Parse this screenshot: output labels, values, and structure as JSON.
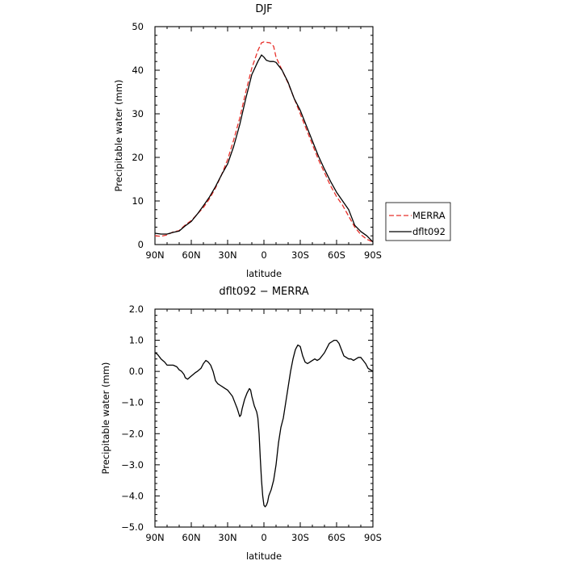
{
  "colors": {
    "merra": "#e8302a",
    "model": "#000000",
    "axis": "#000000"
  },
  "chart_data": [
    {
      "type": "line",
      "title": "DJF",
      "xlabel": "latitude",
      "ylabel": "Precipitable water  (mm)",
      "xlim": [
        90,
        -90
      ],
      "ylim": [
        0,
        50
      ],
      "xticks": [
        90,
        60,
        30,
        0,
        -30,
        -60,
        -90
      ],
      "xtick_labels": [
        "90N",
        "60N",
        "30N",
        "0",
        "30S",
        "60S",
        "90S"
      ],
      "yticks": [
        0,
        10,
        20,
        30,
        40,
        50
      ],
      "ytick_labels": [
        "0",
        "10",
        "20",
        "30",
        "40",
        "50"
      ],
      "legend": {
        "placement": "outside-right",
        "entries": [
          "MERRA",
          "dflt092"
        ]
      },
      "series": [
        {
          "name": "MERRA",
          "style": "dashed",
          "x": [
            90,
            85,
            80,
            75,
            70,
            65,
            60,
            55,
            50,
            45,
            40,
            35,
            30,
            25,
            20,
            15,
            10,
            5,
            2,
            0,
            -2,
            -5,
            -8,
            -10,
            -15,
            -20,
            -25,
            -30,
            -35,
            -40,
            -45,
            -50,
            -55,
            -60,
            -65,
            -70,
            -75,
            -80,
            -85,
            -90
          ],
          "y": [
            2.0,
            1.9,
            2.2,
            2.9,
            3.2,
            4.5,
            5.5,
            7.0,
            8.5,
            10.5,
            13.0,
            16.0,
            19.5,
            24.0,
            29.0,
            35.0,
            40.5,
            44.5,
            46.3,
            46.5,
            46.4,
            46.3,
            45.5,
            43.0,
            40.0,
            37.0,
            33.5,
            30.0,
            26.5,
            23.0,
            19.5,
            16.5,
            13.5,
            11.0,
            9.0,
            6.5,
            4.0,
            2.3,
            1.2,
            0.6
          ]
        },
        {
          "name": "dflt092",
          "style": "solid",
          "x": [
            90,
            85,
            80,
            75,
            70,
            65,
            60,
            55,
            50,
            45,
            40,
            35,
            30,
            25,
            20,
            15,
            10,
            5,
            2,
            0,
            -2,
            -5,
            -8,
            -10,
            -15,
            -20,
            -25,
            -30,
            -35,
            -40,
            -45,
            -50,
            -55,
            -60,
            -65,
            -70,
            -75,
            -80,
            -85,
            -90
          ],
          "y": [
            2.6,
            2.4,
            2.4,
            2.8,
            3.1,
            4.3,
            5.3,
            7.0,
            8.9,
            10.9,
            13.3,
            16.0,
            18.5,
            22.5,
            27.5,
            33.5,
            39.0,
            42.0,
            43.5,
            43.0,
            42.3,
            42.0,
            42.0,
            41.8,
            40.0,
            37.2,
            33.5,
            30.8,
            27.3,
            23.8,
            20.3,
            17.3,
            14.5,
            12.0,
            10.0,
            8.0,
            4.4,
            3.0,
            2.0,
            0.6
          ]
        }
      ]
    },
    {
      "type": "line",
      "title": "dflt092 − MERRA",
      "xlabel": "latitude",
      "ylabel": "Precipitable water  (mm)",
      "xlim": [
        90,
        -90
      ],
      "ylim": [
        -5,
        2
      ],
      "xticks": [
        90,
        60,
        30,
        0,
        -30,
        -60,
        -90
      ],
      "xtick_labels": [
        "90N",
        "60N",
        "30N",
        "0",
        "30S",
        "60S",
        "90S"
      ],
      "yticks": [
        2,
        1,
        0,
        -1,
        -2,
        -3,
        -4,
        -5
      ],
      "ytick_labels": [
        "2.0",
        "1.0",
        "0.0",
        "−1.0",
        "−2.0",
        "−3.0",
        "−4.0",
        "−5.0"
      ],
      "series": [
        {
          "style": "solid",
          "x": [
            90,
            88,
            85,
            82,
            80,
            77,
            75,
            72,
            70,
            68,
            66,
            65,
            63,
            60,
            57,
            55,
            52,
            50,
            48,
            46,
            44,
            42,
            40,
            38,
            36,
            34,
            32,
            30,
            28,
            26,
            24,
            22,
            20,
            19,
            18,
            16,
            14,
            12,
            11,
            10,
            8,
            6,
            5,
            4,
            3,
            2,
            1,
            0,
            -1,
            -2,
            -3,
            -4,
            -6,
            -8,
            -10,
            -12,
            -14,
            -16,
            -18,
            -20,
            -22,
            -24,
            -26,
            -28,
            -30,
            -32,
            -34,
            -36,
            -38,
            -40,
            -42,
            -44,
            -46,
            -48,
            -50,
            -52,
            -54,
            -56,
            -58,
            -60,
            -62,
            -64,
            -66,
            -68,
            -70,
            -72,
            -74,
            -76,
            -78,
            -80,
            -82,
            -84,
            -86,
            -88,
            -90
          ],
          "y": [
            0.6,
            0.55,
            0.4,
            0.3,
            0.2,
            0.2,
            0.2,
            0.15,
            0.05,
            0.0,
            -0.1,
            -0.2,
            -0.25,
            -0.15,
            -0.05,
            0.0,
            0.1,
            0.25,
            0.35,
            0.3,
            0.2,
            0.0,
            -0.3,
            -0.4,
            -0.45,
            -0.5,
            -0.55,
            -0.6,
            -0.7,
            -0.8,
            -1.0,
            -1.2,
            -1.45,
            -1.4,
            -1.2,
            -0.9,
            -0.7,
            -0.55,
            -0.6,
            -0.8,
            -1.1,
            -1.3,
            -1.5,
            -2.0,
            -2.8,
            -3.5,
            -4.0,
            -4.3,
            -4.35,
            -4.3,
            -4.2,
            -4.0,
            -3.8,
            -3.5,
            -3.0,
            -2.3,
            -1.8,
            -1.5,
            -1.0,
            -0.5,
            0.0,
            0.4,
            0.7,
            0.85,
            0.8,
            0.5,
            0.3,
            0.25,
            0.3,
            0.35,
            0.4,
            0.35,
            0.4,
            0.5,
            0.6,
            0.75,
            0.9,
            0.95,
            1.0,
            1.0,
            0.9,
            0.7,
            0.5,
            0.45,
            0.4,
            0.4,
            0.35,
            0.4,
            0.45,
            0.45,
            0.35,
            0.25,
            0.1,
            0.05,
            0.0
          ]
        }
      ]
    }
  ]
}
